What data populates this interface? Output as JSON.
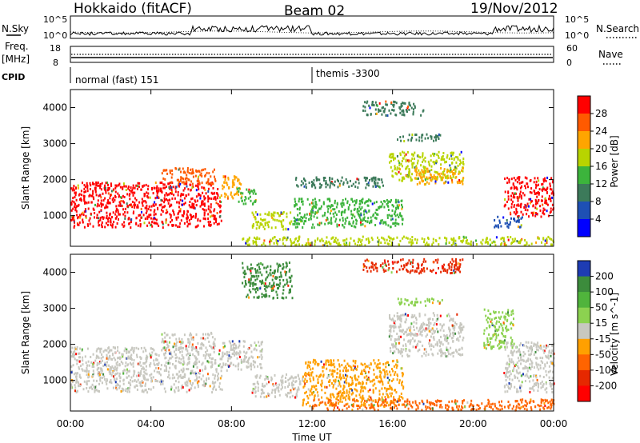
{
  "header": {
    "station": "Hokkaido (fitACF)",
    "beam": "Beam 02",
    "date": "19/Nov/2012"
  },
  "strips": {
    "nsky_label": "N.Sky",
    "nsky_ticks": [
      "10^5",
      "10^0"
    ],
    "nsearch_label": "N.Search",
    "nsearch_ticks": [
      "10^5",
      "10^0"
    ],
    "freq_label_line1": "Freq.",
    "freq_label_line2": "[MHz]",
    "freq_ticks": [
      "18",
      "8"
    ],
    "nave_label": "Nave",
    "nave_ticks": [
      "60",
      "0"
    ],
    "cpid_label": "CPID",
    "cpid_segments": [
      {
        "label": "normal (fast) 151",
        "start_hour": 0
      },
      {
        "label": "themis -3300",
        "start_hour": 12
      }
    ]
  },
  "chart_data": [
    {
      "type": "heatmap",
      "title": "",
      "xlabel": "",
      "ylabel": "Slant Range [km]",
      "xlim": [
        0,
        24
      ],
      "ylim": [
        150,
        4500
      ],
      "yticks": [
        "1000",
        "2000",
        "3000",
        "4000"
      ],
      "colorbar": {
        "label": "Power [dB]",
        "ticks": [
          "28",
          "24",
          "20",
          "16",
          "12",
          "8",
          "4"
        ],
        "colors": [
          "#ff0000",
          "#ff5a00",
          "#ffa500",
          "#b8d400",
          "#3cb43c",
          "#3c7a5a",
          "#1e50b4",
          "#0000ff"
        ]
      },
      "regions": [
        {
          "x": [
            0.0,
            7.5
          ],
          "y": [
            700,
            1950
          ],
          "level": 28
        },
        {
          "x": [
            4.5,
            7.2
          ],
          "y": [
            1900,
            2350
          ],
          "level": 27
        },
        {
          "x": [
            7.5,
            8.5
          ],
          "y": [
            1500,
            2150
          ],
          "level": 22
        },
        {
          "x": [
            8.3,
            9.2
          ],
          "y": [
            1350,
            1800
          ],
          "level": 14
        },
        {
          "x": [
            9.0,
            11.0
          ],
          "y": [
            650,
            1150
          ],
          "level": 16
        },
        {
          "x": [
            11.0,
            16.5
          ],
          "y": [
            700,
            1500
          ],
          "level": 14
        },
        {
          "x": [
            11.0,
            15.5
          ],
          "y": [
            1800,
            2100
          ],
          "level": 10
        },
        {
          "x": [
            15.8,
            19.5
          ],
          "y": [
            2000,
            2800
          ],
          "level": 18
        },
        {
          "x": [
            17.0,
            19.5
          ],
          "y": [
            1900,
            2350
          ],
          "level": 22
        },
        {
          "x": [
            16.2,
            18.5
          ],
          "y": [
            3100,
            3300
          ],
          "level": 10
        },
        {
          "x": [
            14.5,
            17.5
          ],
          "y": [
            3800,
            4200
          ],
          "level": 8
        },
        {
          "x": [
            21.5,
            24.0
          ],
          "y": [
            1000,
            2100
          ],
          "level": 28
        },
        {
          "x": [
            21.0,
            22.5
          ],
          "y": [
            700,
            1000
          ],
          "level": 6
        },
        {
          "x": [
            8.5,
            24.0
          ],
          "y": [
            200,
            450
          ],
          "level": 18
        }
      ]
    },
    {
      "type": "heatmap",
      "title": "",
      "xlabel": "Time UT",
      "ylabel": "Slant Range [km]",
      "xlim": [
        0,
        24
      ],
      "ylim": [
        150,
        4500
      ],
      "xticks": [
        "00:00",
        "04:00",
        "08:00",
        "12:00",
        "16:00",
        "20:00",
        "00:00"
      ],
      "yticks": [
        "1000",
        "2000",
        "3000",
        "4000"
      ],
      "colorbar": {
        "label": "Velocity [m s^-1]",
        "ticks": [
          "200",
          "100",
          "50",
          "15",
          "-15",
          "-50",
          "-100",
          "-200"
        ],
        "colors": [
          "#1e3cb4",
          "#3c8c3c",
          "#50b43c",
          "#8cd250",
          "#c8c8c0",
          "#ffa000",
          "#ff6400",
          "#e62800",
          "#ff0000"
        ]
      },
      "regions": [
        {
          "x": [
            0.0,
            7.5
          ],
          "y": [
            700,
            1950
          ],
          "level": 0
        },
        {
          "x": [
            4.5,
            7.2
          ],
          "y": [
            1900,
            2350
          ],
          "level": 0
        },
        {
          "x": [
            7.5,
            9.5
          ],
          "y": [
            1300,
            2150
          ],
          "level": 0
        },
        {
          "x": [
            9.0,
            11.5
          ],
          "y": [
            550,
            1200
          ],
          "level": 0
        },
        {
          "x": [
            11.5,
            16.5
          ],
          "y": [
            300,
            1600
          ],
          "level": -30
        },
        {
          "x": [
            15.8,
            19.5
          ],
          "y": [
            1700,
            2900
          ],
          "level": 0
        },
        {
          "x": [
            16.2,
            18.5
          ],
          "y": [
            3100,
            3300
          ],
          "level": 30
        },
        {
          "x": [
            21.5,
            24.0
          ],
          "y": [
            700,
            2100
          ],
          "level": 0
        },
        {
          "x": [
            20.5,
            22.0
          ],
          "y": [
            1900,
            3000
          ],
          "level": 30
        },
        {
          "x": [
            14.5,
            19.5
          ],
          "y": [
            4000,
            4400
          ],
          "level": -150
        },
        {
          "x": [
            8.5,
            11.0
          ],
          "y": [
            3300,
            4300
          ],
          "level": 150
        },
        {
          "x": [
            12.0,
            24.0
          ],
          "y": [
            200,
            500
          ],
          "level": -60
        }
      ]
    }
  ]
}
